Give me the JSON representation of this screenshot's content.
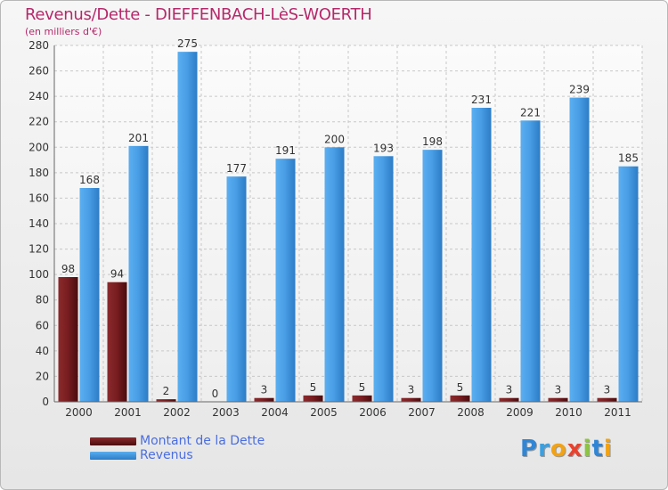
{
  "title": "Revenus/Dette - DIEFFENBACH-LèS-WOERTH",
  "subtitle": "(en milliers d'€)",
  "logo": {
    "letters": [
      "P",
      "r",
      "o",
      "x",
      "i",
      "t",
      "i"
    ],
    "colors": [
      "#2f86d6",
      "#3aa0e0",
      "#f2a215",
      "#e8422e",
      "#8cc63f",
      "#2f86d6",
      "#f2a215"
    ]
  },
  "legend": {
    "items": [
      {
        "label": "Montant de la Dette",
        "color": "#6b1518"
      },
      {
        "label": "Revenus",
        "color": "#3e95e0"
      }
    ]
  },
  "chart_data": {
    "type": "bar",
    "title": "Revenus/Dette - DIEFFENBACH-LèS-WOERTH",
    "subtitle": "(en milliers d'€)",
    "categories": [
      "2000",
      "2001",
      "2002",
      "2003",
      "2004",
      "2005",
      "2006",
      "2007",
      "2008",
      "2009",
      "2010",
      "2011"
    ],
    "series": [
      {
        "name": "Montant de la Dette",
        "color": "#6b1518",
        "values": [
          98,
          94,
          2,
          0,
          3,
          5,
          5,
          3,
          5,
          3,
          3,
          3
        ]
      },
      {
        "name": "Revenus",
        "color": "#3e95e0",
        "values": [
          168,
          201,
          275,
          177,
          191,
          200,
          193,
          198,
          231,
          221,
          239,
          185
        ]
      }
    ],
    "ylim": [
      0,
      280
    ],
    "yticks": [
      0,
      20,
      40,
      60,
      80,
      100,
      120,
      140,
      160,
      180,
      200,
      220,
      240,
      260,
      280
    ],
    "grid": true,
    "legend_position": "bottom-left"
  }
}
